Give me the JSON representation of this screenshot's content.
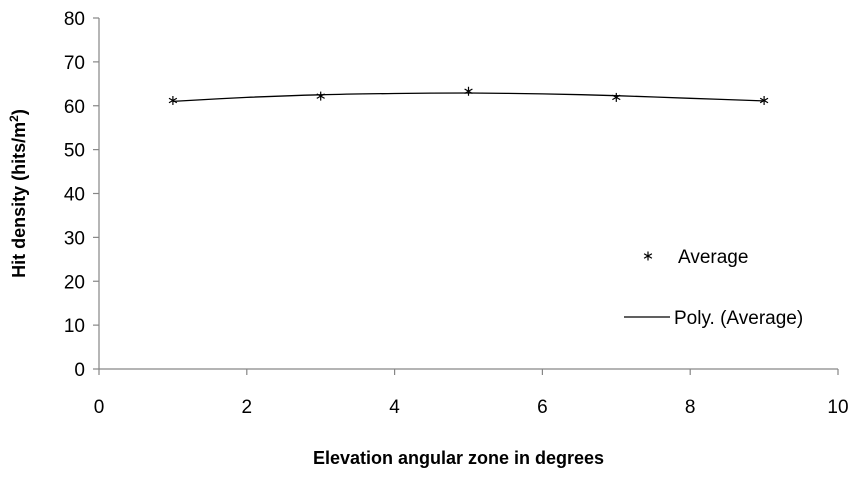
{
  "chart_data": {
    "type": "scatter",
    "xlabel": "Elevation angular zone in degrees",
    "ylabel_main": "Hit density (hits/m",
    "ylabel_sup": "2",
    "ylabel_end": ")",
    "xlim": [
      0,
      10
    ],
    "ylim": [
      0,
      80
    ],
    "xticks": [
      0,
      2,
      4,
      6,
      8,
      10
    ],
    "yticks": [
      0,
      10,
      20,
      30,
      40,
      50,
      60,
      70,
      80
    ],
    "grid": false,
    "legend_position": "right",
    "series": [
      {
        "name": "Average",
        "kind": "scatter",
        "marker": "star",
        "x": [
          1,
          3,
          5,
          7,
          9
        ],
        "y": [
          61.2,
          62.2,
          63.3,
          61.9,
          61.2
        ]
      },
      {
        "name": "Poly. (Average)",
        "kind": "line",
        "x": [
          1,
          2,
          3,
          4,
          5,
          6,
          7,
          8,
          9
        ],
        "y": [
          61.0,
          61.9,
          62.5,
          62.8,
          62.9,
          62.7,
          62.3,
          61.7,
          61.1
        ]
      }
    ]
  }
}
